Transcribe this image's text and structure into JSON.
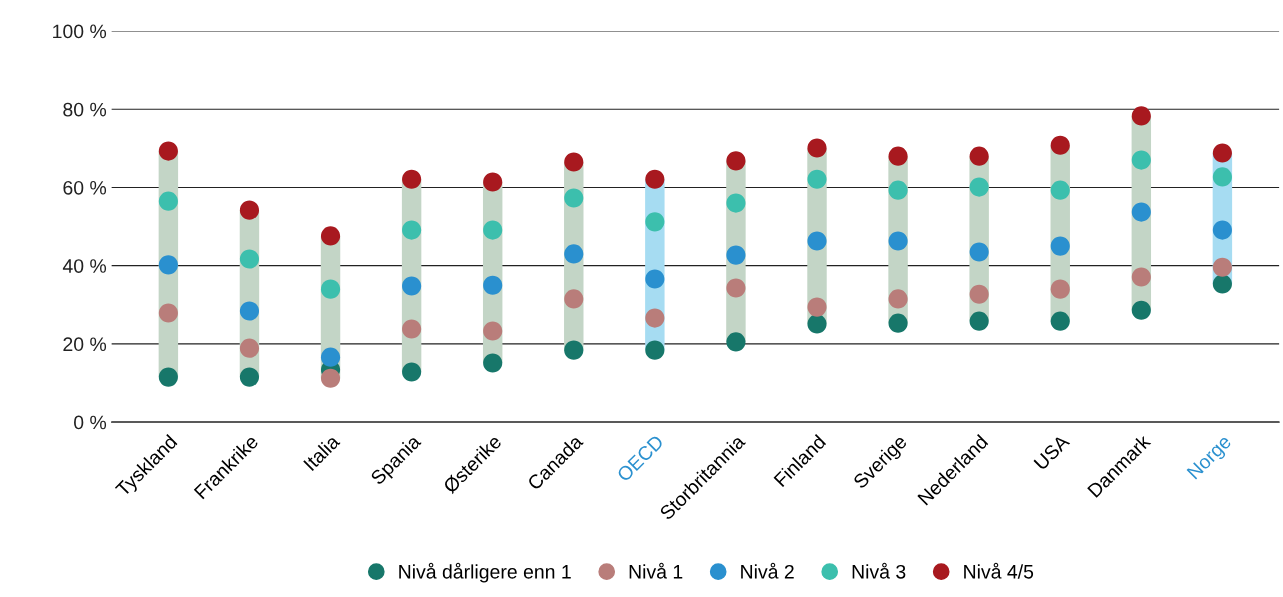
{
  "chart_data": {
    "type": "scatter",
    "categories": [
      "Tyskland",
      "Frankrike",
      "Italia",
      "Spania",
      "Østerike",
      "Canada",
      "OECD",
      "Storbritannia",
      "Finland",
      "Sverige",
      "Nederland",
      "USA",
      "Danmark",
      "Norge"
    ],
    "colors": [
      "#c3d5c6",
      "#c3d5c6",
      "#c3d5c6",
      "#c3d5c6",
      "#c3d5c6",
      "#c3d5c6",
      "#a6dcf2",
      "#c3d5c6",
      "#c3d5c6",
      "#c3d5c6",
      "#c3d5c6",
      "#c3d5c6",
      "#c3d5c6",
      "#a6dcf2"
    ],
    "series": [
      {
        "name": "Nivå dårligere enn 1",
        "color": "#17776a",
        "values": [
          11.5,
          11.5,
          13.4,
          12.8,
          15.1,
          18.4,
          18.4,
          20.5,
          25.1,
          25.3,
          25.8,
          25.8,
          28.6,
          35.3
        ]
      },
      {
        "name": "Nivå 1",
        "color": "#b97d7a",
        "values": [
          27.9,
          18.9,
          11.2,
          23.8,
          23.3,
          31.5,
          26.6,
          34.3,
          29.4,
          31.5,
          32.7,
          34.0,
          37.1,
          39.6
        ]
      },
      {
        "name": "Nivå 2",
        "color": "#2a90cf",
        "values": [
          40.2,
          28.4,
          16.6,
          34.8,
          35.0,
          43.0,
          36.6,
          42.7,
          46.3,
          46.3,
          43.5,
          45.0,
          53.7,
          49.1
        ]
      },
      {
        "name": "Nivå 3",
        "color": "#3cbfad",
        "values": [
          56.5,
          41.7,
          34.0,
          49.1,
          49.1,
          57.3,
          51.2,
          56.0,
          62.1,
          59.3,
          60.1,
          59.3,
          67.0,
          62.7
        ]
      },
      {
        "name": "Nivå 4/5",
        "color": "#a8191f",
        "values": [
          69.3,
          54.2,
          47.6,
          62.1,
          61.4,
          66.5,
          62.1,
          66.8,
          70.1,
          68.0,
          68.0,
          70.8,
          78.3,
          68.8
        ]
      }
    ],
    "ylim": [
      0,
      100
    ],
    "yticks": [
      {
        "value": 0,
        "label": "0 %"
      },
      {
        "value": 20,
        "label": "20 %"
      },
      {
        "value": 40,
        "label": "40 %"
      },
      {
        "value": 60,
        "label": "60 %"
      },
      {
        "value": 80,
        "label": "80 %"
      },
      {
        "value": 100,
        "label": "100 %"
      }
    ],
    "grid": "y",
    "legend": "bottom",
    "marker": "circle"
  }
}
